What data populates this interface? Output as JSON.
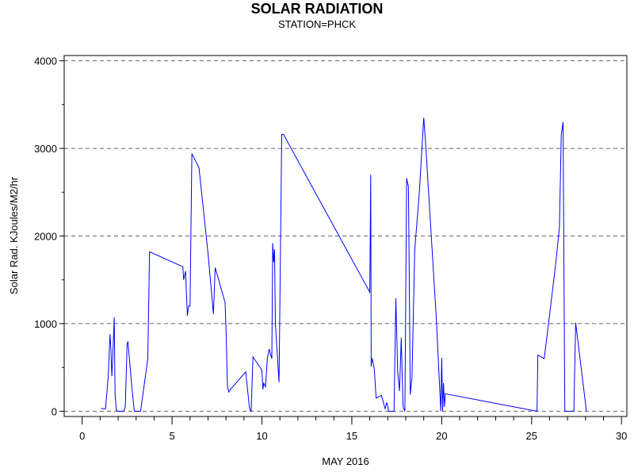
{
  "chart_data": {
    "type": "line",
    "title": "SOLAR RADIATION",
    "subtitle": "STATION=PHCK",
    "xlabel": "MAY 2016",
    "ylabel": "Solar Rad. KJoules/M2/hr",
    "xlim": [
      -1,
      30.3
    ],
    "ylim": [
      -60,
      4060
    ],
    "xticks": [
      0,
      5,
      10,
      15,
      20,
      25,
      30
    ],
    "yticks": [
      0,
      1000,
      2000,
      3000,
      4000
    ],
    "grid": "horizontal-dashed",
    "series": [
      {
        "name": "Solar Radiation",
        "color": "#0000ff",
        "x": [
          1.05,
          1.3,
          1.45,
          1.55,
          1.6,
          1.65,
          1.7,
          1.78,
          1.83,
          1.9,
          2.0,
          2.3,
          2.4,
          2.5,
          2.55,
          2.75,
          2.9,
          3.25,
          3.65,
          3.75,
          5.6,
          5.65,
          5.75,
          5.85,
          5.92,
          6.0,
          6.1,
          6.5,
          7.0,
          7.3,
          7.4,
          7.95,
          8.0,
          8.08,
          8.15,
          8.25,
          9.1,
          9.15,
          9.25,
          9.3,
          9.35,
          9.4,
          9.5,
          10.0,
          10.05,
          10.1,
          10.2,
          10.3,
          10.4,
          10.55,
          10.6,
          10.65,
          10.7,
          10.75,
          10.95,
          11.1,
          11.2,
          16.0,
          16.05,
          16.08,
          16.12,
          16.15,
          16.25,
          16.35,
          16.45,
          16.55,
          16.65,
          16.85,
          16.95,
          17.05,
          17.35,
          17.45,
          17.55,
          17.65,
          17.75,
          17.85,
          17.95,
          18.05,
          18.15,
          18.25,
          18.35,
          18.5,
          18.75,
          19.0,
          19.1,
          19.7,
          19.95,
          20.0,
          20.05,
          20.1,
          20.15,
          20.2,
          25.3,
          25.35,
          25.45,
          25.7,
          26.0,
          26.35,
          26.55,
          26.65,
          26.75,
          26.85,
          27.05,
          27.35,
          27.45,
          28.05
        ],
        "y": [
          30,
          30,
          400,
          880,
          700,
          400,
          600,
          1070,
          200,
          10,
          0,
          0,
          50,
          770,
          790,
          300,
          0,
          0,
          600,
          1820,
          1650,
          1500,
          1600,
          1090,
          1200,
          1200,
          2940,
          2780,
          1800,
          1110,
          1640,
          1240,
          930,
          290,
          220,
          250,
          450,
          350,
          150,
          50,
          10,
          0,
          620,
          470,
          250,
          320,
          280,
          600,
          710,
          600,
          1920,
          1700,
          1850,
          1000,
          330,
          3160,
          3160,
          1360,
          2700,
          510,
          600,
          590,
          480,
          150,
          160,
          170,
          180,
          30,
          100,
          0,
          0,
          1290,
          450,
          230,
          840,
          50,
          0,
          2660,
          2560,
          190,
          390,
          1840,
          2480,
          3350,
          3080,
          1050,
          0,
          610,
          0,
          320,
          50,
          200,
          0,
          640,
          630,
          600,
          1100,
          1700,
          2100,
          3150,
          3300,
          0,
          0,
          0,
          1010,
          0
        ]
      }
    ]
  }
}
